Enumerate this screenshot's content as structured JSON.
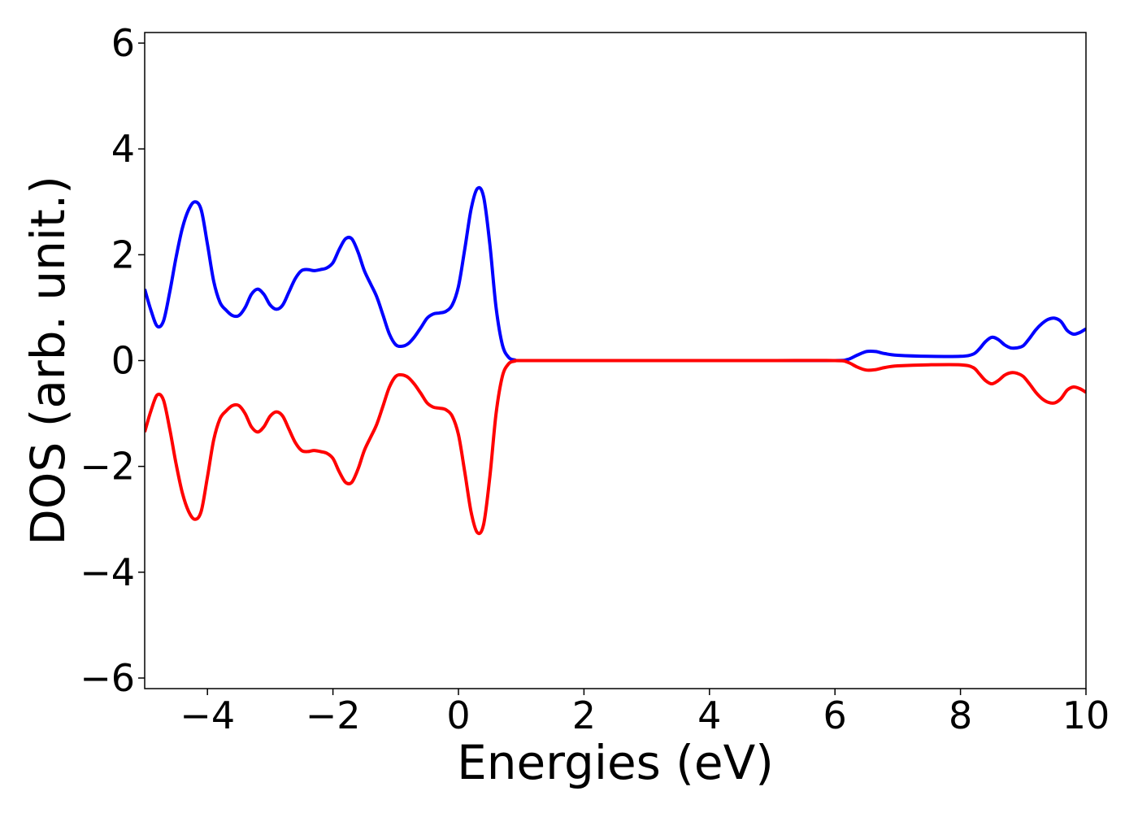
{
  "chart_data": {
    "type": "line",
    "title": "",
    "xlabel": "Energies (eV)",
    "ylabel": "DOS (arb. unit.)",
    "xlim": [
      -5,
      10
    ],
    "ylim": [
      -6.2,
      6.2
    ],
    "grid": false,
    "x_ticks": [
      -4,
      -2,
      0,
      2,
      4,
      6,
      8,
      10
    ],
    "x_tick_labels": [
      "−4",
      "−2",
      "0",
      "2",
      "4",
      "6",
      "8",
      "10"
    ],
    "y_ticks": [
      -6,
      -4,
      -2,
      0,
      2,
      4,
      6
    ],
    "y_tick_labels": [
      "−6",
      "−4",
      "−2",
      "0",
      "2",
      "4",
      "6"
    ],
    "series": [
      {
        "color": "#0000ff",
        "points": [
          [
            -5.0,
            1.35
          ],
          [
            -4.9,
            0.95
          ],
          [
            -4.8,
            0.65
          ],
          [
            -4.7,
            0.75
          ],
          [
            -4.6,
            1.3
          ],
          [
            -4.5,
            1.95
          ],
          [
            -4.4,
            2.5
          ],
          [
            -4.3,
            2.85
          ],
          [
            -4.2,
            3.0
          ],
          [
            -4.1,
            2.85
          ],
          [
            -4.0,
            2.2
          ],
          [
            -3.9,
            1.5
          ],
          [
            -3.8,
            1.1
          ],
          [
            -3.7,
            0.95
          ],
          [
            -3.6,
            0.85
          ],
          [
            -3.5,
            0.85
          ],
          [
            -3.4,
            1.0
          ],
          [
            -3.3,
            1.25
          ],
          [
            -3.2,
            1.35
          ],
          [
            -3.1,
            1.25
          ],
          [
            -3.0,
            1.05
          ],
          [
            -2.9,
            0.97
          ],
          [
            -2.8,
            1.05
          ],
          [
            -2.7,
            1.3
          ],
          [
            -2.6,
            1.55
          ],
          [
            -2.5,
            1.7
          ],
          [
            -2.4,
            1.72
          ],
          [
            -2.3,
            1.7
          ],
          [
            -2.2,
            1.72
          ],
          [
            -2.1,
            1.75
          ],
          [
            -2.0,
            1.85
          ],
          [
            -1.9,
            2.1
          ],
          [
            -1.8,
            2.3
          ],
          [
            -1.7,
            2.3
          ],
          [
            -1.6,
            2.05
          ],
          [
            -1.5,
            1.7
          ],
          [
            -1.4,
            1.45
          ],
          [
            -1.3,
            1.2
          ],
          [
            -1.2,
            0.85
          ],
          [
            -1.1,
            0.5
          ],
          [
            -1.0,
            0.3
          ],
          [
            -0.9,
            0.27
          ],
          [
            -0.8,
            0.32
          ],
          [
            -0.7,
            0.45
          ],
          [
            -0.6,
            0.62
          ],
          [
            -0.5,
            0.8
          ],
          [
            -0.4,
            0.88
          ],
          [
            -0.3,
            0.9
          ],
          [
            -0.2,
            0.93
          ],
          [
            -0.1,
            1.05
          ],
          [
            0.0,
            1.4
          ],
          [
            0.1,
            2.1
          ],
          [
            0.2,
            2.85
          ],
          [
            0.3,
            3.25
          ],
          [
            0.4,
            3.1
          ],
          [
            0.5,
            2.2
          ],
          [
            0.6,
            1.0
          ],
          [
            0.7,
            0.3
          ],
          [
            0.8,
            0.06
          ],
          [
            0.9,
            0.01
          ],
          [
            1.0,
            0.0
          ],
          [
            2.0,
            0.0
          ],
          [
            3.0,
            0.0
          ],
          [
            4.0,
            0.0
          ],
          [
            5.0,
            0.0
          ],
          [
            6.0,
            0.0
          ],
          [
            6.2,
            0.02
          ],
          [
            6.35,
            0.1
          ],
          [
            6.5,
            0.17
          ],
          [
            6.65,
            0.17
          ],
          [
            6.8,
            0.13
          ],
          [
            7.0,
            0.1
          ],
          [
            7.5,
            0.08
          ],
          [
            8.0,
            0.08
          ],
          [
            8.2,
            0.12
          ],
          [
            8.3,
            0.22
          ],
          [
            8.4,
            0.36
          ],
          [
            8.5,
            0.44
          ],
          [
            8.6,
            0.4
          ],
          [
            8.7,
            0.3
          ],
          [
            8.8,
            0.24
          ],
          [
            8.9,
            0.24
          ],
          [
            9.0,
            0.28
          ],
          [
            9.1,
            0.42
          ],
          [
            9.2,
            0.58
          ],
          [
            9.3,
            0.7
          ],
          [
            9.4,
            0.78
          ],
          [
            9.5,
            0.8
          ],
          [
            9.6,
            0.74
          ],
          [
            9.7,
            0.57
          ],
          [
            9.8,
            0.5
          ],
          [
            9.9,
            0.53
          ],
          [
            10.0,
            0.6
          ]
        ]
      },
      {
        "color": "#ff0000",
        "points": [
          [
            -5.0,
            -1.35
          ],
          [
            -4.9,
            -0.95
          ],
          [
            -4.8,
            -0.65
          ],
          [
            -4.7,
            -0.75
          ],
          [
            -4.6,
            -1.3
          ],
          [
            -4.5,
            -1.95
          ],
          [
            -4.4,
            -2.5
          ],
          [
            -4.3,
            -2.85
          ],
          [
            -4.2,
            -3.0
          ],
          [
            -4.1,
            -2.85
          ],
          [
            -4.0,
            -2.2
          ],
          [
            -3.9,
            -1.5
          ],
          [
            -3.8,
            -1.1
          ],
          [
            -3.7,
            -0.95
          ],
          [
            -3.6,
            -0.85
          ],
          [
            -3.5,
            -0.85
          ],
          [
            -3.4,
            -1.0
          ],
          [
            -3.3,
            -1.25
          ],
          [
            -3.2,
            -1.35
          ],
          [
            -3.1,
            -1.25
          ],
          [
            -3.0,
            -1.05
          ],
          [
            -2.9,
            -0.97
          ],
          [
            -2.8,
            -1.05
          ],
          [
            -2.7,
            -1.3
          ],
          [
            -2.6,
            -1.55
          ],
          [
            -2.5,
            -1.7
          ],
          [
            -2.4,
            -1.72
          ],
          [
            -2.3,
            -1.7
          ],
          [
            -2.2,
            -1.72
          ],
          [
            -2.1,
            -1.75
          ],
          [
            -2.0,
            -1.85
          ],
          [
            -1.9,
            -2.1
          ],
          [
            -1.8,
            -2.3
          ],
          [
            -1.7,
            -2.3
          ],
          [
            -1.6,
            -2.05
          ],
          [
            -1.5,
            -1.7
          ],
          [
            -1.4,
            -1.45
          ],
          [
            -1.3,
            -1.2
          ],
          [
            -1.2,
            -0.85
          ],
          [
            -1.1,
            -0.5
          ],
          [
            -1.0,
            -0.3
          ],
          [
            -0.9,
            -0.27
          ],
          [
            -0.8,
            -0.32
          ],
          [
            -0.7,
            -0.45
          ],
          [
            -0.6,
            -0.62
          ],
          [
            -0.5,
            -0.8
          ],
          [
            -0.4,
            -0.88
          ],
          [
            -0.3,
            -0.9
          ],
          [
            -0.2,
            -0.93
          ],
          [
            -0.1,
            -1.05
          ],
          [
            0.0,
            -1.4
          ],
          [
            0.1,
            -2.1
          ],
          [
            0.2,
            -2.85
          ],
          [
            0.3,
            -3.25
          ],
          [
            0.4,
            -3.1
          ],
          [
            0.5,
            -2.2
          ],
          [
            0.6,
            -1.0
          ],
          [
            0.7,
            -0.3
          ],
          [
            0.8,
            -0.06
          ],
          [
            0.9,
            -0.01
          ],
          [
            1.0,
            0.0
          ],
          [
            2.0,
            0.0
          ],
          [
            3.0,
            0.0
          ],
          [
            4.0,
            0.0
          ],
          [
            5.0,
            0.0
          ],
          [
            6.0,
            0.0
          ],
          [
            6.2,
            -0.03
          ],
          [
            6.35,
            -0.12
          ],
          [
            6.5,
            -0.18
          ],
          [
            6.65,
            -0.17
          ],
          [
            6.8,
            -0.13
          ],
          [
            7.0,
            -0.1
          ],
          [
            7.5,
            -0.08
          ],
          [
            8.0,
            -0.08
          ],
          [
            8.2,
            -0.13
          ],
          [
            8.3,
            -0.25
          ],
          [
            8.4,
            -0.38
          ],
          [
            8.5,
            -0.44
          ],
          [
            8.6,
            -0.38
          ],
          [
            8.7,
            -0.28
          ],
          [
            8.8,
            -0.23
          ],
          [
            8.9,
            -0.24
          ],
          [
            9.0,
            -0.3
          ],
          [
            9.1,
            -0.44
          ],
          [
            9.2,
            -0.6
          ],
          [
            9.3,
            -0.72
          ],
          [
            9.4,
            -0.79
          ],
          [
            9.5,
            -0.8
          ],
          [
            9.6,
            -0.72
          ],
          [
            9.7,
            -0.56
          ],
          [
            9.8,
            -0.5
          ],
          [
            9.9,
            -0.53
          ],
          [
            10.0,
            -0.6
          ]
        ]
      }
    ]
  }
}
